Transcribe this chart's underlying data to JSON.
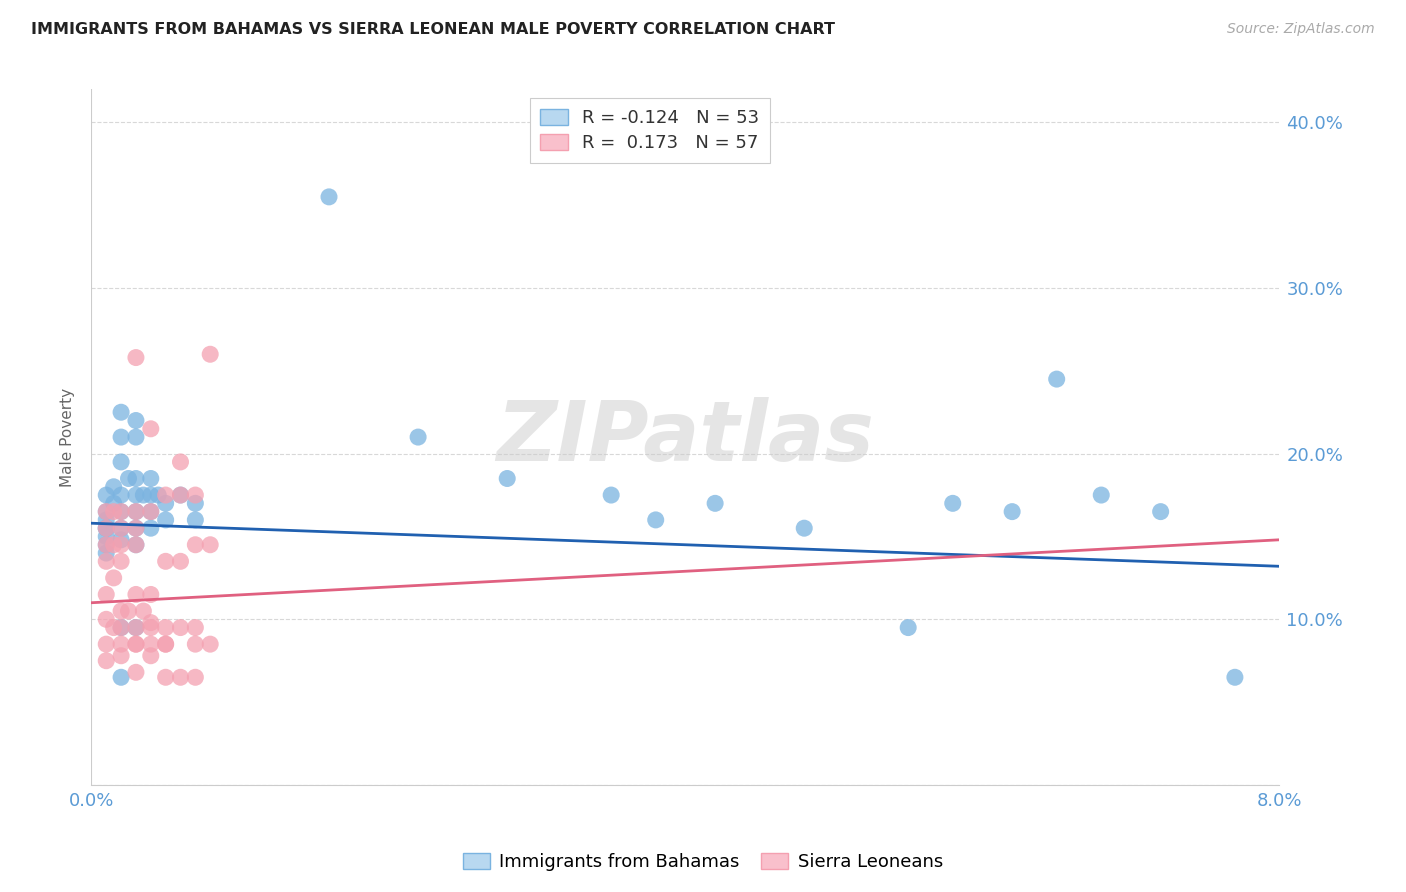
{
  "title": "IMMIGRANTS FROM BAHAMAS VS SIERRA LEONEAN MALE POVERTY CORRELATION CHART",
  "source": "Source: ZipAtlas.com",
  "ylabel": "Male Poverty",
  "blue_color": "#7ab3e0",
  "pink_color": "#f4a0b0",
  "blue_line_color": "#2060b0",
  "pink_line_color": "#e06080",
  "blue_label": "Immigrants from Bahamas",
  "pink_label": "Sierra Leoneans",
  "blue_R": -0.124,
  "blue_N": 53,
  "pink_R": 0.173,
  "pink_N": 57,
  "xmin": 0.0,
  "xmax": 0.08,
  "ymin": 0.0,
  "ymax": 0.42,
  "xtick_positions": [
    0.0,
    0.02,
    0.04,
    0.06,
    0.08
  ],
  "xtick_labels": [
    "0.0%",
    "",
    "",
    "",
    "8.0%"
  ],
  "ytick_positions": [
    0.0,
    0.1,
    0.2,
    0.3,
    0.4
  ],
  "right_ytick_labels": [
    "",
    "10.0%",
    "20.0%",
    "30.0%",
    "40.0%"
  ],
  "grid_color": "#d8d8d8",
  "axis_color": "#cccccc",
  "tick_label_color": "#5b9bd5",
  "watermark": "ZIPatlas",
  "background_color": "#ffffff",
  "blue_line_y0": 0.158,
  "blue_line_y1": 0.132,
  "pink_line_y0": 0.11,
  "pink_line_y1": 0.148,
  "blue_scatter_x": [
    0.001,
    0.001,
    0.001,
    0.001,
    0.001,
    0.001,
    0.001,
    0.0015,
    0.0015,
    0.002,
    0.002,
    0.002,
    0.002,
    0.002,
    0.002,
    0.002,
    0.0025,
    0.003,
    0.003,
    0.003,
    0.003,
    0.003,
    0.003,
    0.003,
    0.0035,
    0.004,
    0.004,
    0.004,
    0.004,
    0.0045,
    0.005,
    0.005,
    0.006,
    0.007,
    0.007,
    0.016,
    0.022,
    0.028,
    0.035,
    0.038,
    0.042,
    0.048,
    0.055,
    0.058,
    0.062,
    0.065,
    0.068,
    0.072,
    0.077,
    0.001,
    0.002,
    0.003,
    0.002
  ],
  "blue_scatter_y": [
    0.175,
    0.165,
    0.16,
    0.155,
    0.15,
    0.145,
    0.14,
    0.18,
    0.17,
    0.225,
    0.21,
    0.195,
    0.175,
    0.165,
    0.155,
    0.148,
    0.185,
    0.22,
    0.21,
    0.185,
    0.175,
    0.165,
    0.155,
    0.145,
    0.175,
    0.185,
    0.175,
    0.165,
    0.155,
    0.175,
    0.17,
    0.16,
    0.175,
    0.17,
    0.16,
    0.355,
    0.21,
    0.185,
    0.175,
    0.16,
    0.17,
    0.155,
    0.095,
    0.17,
    0.165,
    0.245,
    0.175,
    0.165,
    0.065,
    0.155,
    0.065,
    0.095,
    0.095
  ],
  "pink_scatter_x": [
    0.001,
    0.001,
    0.001,
    0.001,
    0.001,
    0.001,
    0.001,
    0.001,
    0.0015,
    0.0015,
    0.0015,
    0.0015,
    0.002,
    0.002,
    0.002,
    0.002,
    0.002,
    0.002,
    0.002,
    0.0025,
    0.003,
    0.003,
    0.003,
    0.003,
    0.003,
    0.003,
    0.003,
    0.0035,
    0.004,
    0.004,
    0.004,
    0.004,
    0.004,
    0.005,
    0.005,
    0.005,
    0.005,
    0.006,
    0.006,
    0.006,
    0.006,
    0.007,
    0.007,
    0.007,
    0.007,
    0.008,
    0.008,
    0.003,
    0.004,
    0.005,
    0.006,
    0.007,
    0.008,
    0.002,
    0.003,
    0.004,
    0.005
  ],
  "pink_scatter_y": [
    0.165,
    0.155,
    0.145,
    0.135,
    0.115,
    0.1,
    0.085,
    0.075,
    0.165,
    0.145,
    0.125,
    0.095,
    0.165,
    0.155,
    0.145,
    0.135,
    0.105,
    0.095,
    0.078,
    0.105,
    0.165,
    0.155,
    0.145,
    0.115,
    0.095,
    0.085,
    0.068,
    0.105,
    0.215,
    0.165,
    0.115,
    0.095,
    0.078,
    0.175,
    0.135,
    0.095,
    0.065,
    0.175,
    0.135,
    0.095,
    0.065,
    0.175,
    0.145,
    0.095,
    0.065,
    0.145,
    0.085,
    0.258,
    0.098,
    0.085,
    0.195,
    0.085,
    0.26,
    0.085,
    0.085,
    0.085,
    0.085
  ]
}
